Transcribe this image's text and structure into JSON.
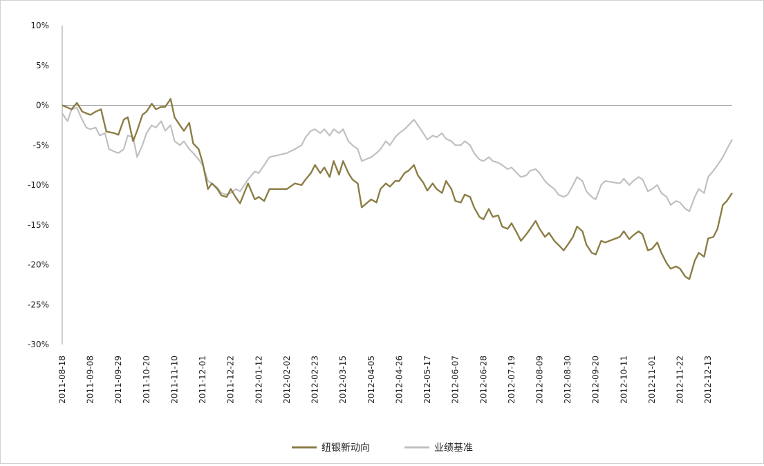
{
  "chart_data": {
    "type": "line",
    "title": "",
    "xlabel": "",
    "ylabel": "",
    "ylim": [
      -30,
      10
    ],
    "y_ticks": [
      "10%",
      "5%",
      "0%",
      "-5%",
      "-10%",
      "-15%",
      "-20%",
      "-25%",
      "-30%"
    ],
    "x_ticks": [
      "2011-08-18",
      "2011-09-08",
      "2011-09-29",
      "2011-10-20",
      "2011-11-10",
      "2011-12-01",
      "2011-12-22",
      "2012-01-12",
      "2012-02-02",
      "2012-02-23",
      "2012-03-15",
      "2012-04-05",
      "2012-04-26",
      "2012-05-17",
      "2012-06-07",
      "2012-06-28",
      "2012-07-19",
      "2012-08-09",
      "2012-08-30",
      "2012-09-20",
      "2012-10-11",
      "2012-11-01",
      "2012-11-22",
      "2012-12-13"
    ],
    "xlim": [
      "2011-08-18",
      "2012-12-31"
    ],
    "grid": false,
    "legend_position": "bottom",
    "series": [
      {
        "name": "纽银新动向",
        "color": "#8b7d45",
        "points": [
          [
            "2011-08-18",
            0.0
          ],
          [
            "2011-08-25",
            -0.5
          ],
          [
            "2011-08-29",
            0.3
          ],
          [
            "2011-09-02",
            -0.8
          ],
          [
            "2011-09-08",
            -1.2
          ],
          [
            "2011-09-12",
            -0.8
          ],
          [
            "2011-09-16",
            -0.5
          ],
          [
            "2011-09-20",
            -3.3
          ],
          [
            "2011-09-26",
            -3.5
          ],
          [
            "2011-09-29",
            -3.7
          ],
          [
            "2011-10-03",
            -1.8
          ],
          [
            "2011-10-06",
            -1.5
          ],
          [
            "2011-10-10",
            -4.5
          ],
          [
            "2011-10-13",
            -3.2
          ],
          [
            "2011-10-17",
            -1.2
          ],
          [
            "2011-10-20",
            -0.8
          ],
          [
            "2011-10-24",
            0.2
          ],
          [
            "2011-10-27",
            -0.5
          ],
          [
            "2011-10-31",
            -0.2
          ],
          [
            "2011-11-03",
            -0.2
          ],
          [
            "2011-11-07",
            0.8
          ],
          [
            "2011-11-10",
            -1.5
          ],
          [
            "2011-11-14",
            -2.5
          ],
          [
            "2011-11-17",
            -3.2
          ],
          [
            "2011-11-21",
            -2.2
          ],
          [
            "2011-11-24",
            -4.8
          ],
          [
            "2011-11-28",
            -5.5
          ],
          [
            "2011-12-01",
            -7.2
          ],
          [
            "2011-12-05",
            -10.5
          ],
          [
            "2011-12-08",
            -9.8
          ],
          [
            "2011-12-12",
            -10.5
          ],
          [
            "2011-12-15",
            -11.3
          ],
          [
            "2011-12-19",
            -11.5
          ],
          [
            "2011-12-22",
            -10.5
          ],
          [
            "2011-12-26",
            -11.6
          ],
          [
            "2011-12-29",
            -12.3
          ],
          [
            "2012-01-04",
            -9.8
          ],
          [
            "2012-01-09",
            -11.8
          ],
          [
            "2012-01-12",
            -11.5
          ],
          [
            "2012-01-16",
            -12.0
          ],
          [
            "2012-01-20",
            -10.5
          ],
          [
            "2012-02-02",
            -10.5
          ],
          [
            "2012-02-08",
            -9.8
          ],
          [
            "2012-02-13",
            -10.0
          ],
          [
            "2012-02-16",
            -9.3
          ],
          [
            "2012-02-20",
            -8.5
          ],
          [
            "2012-02-23",
            -7.5
          ],
          [
            "2012-02-27",
            -8.5
          ],
          [
            "2012-03-01",
            -7.8
          ],
          [
            "2012-03-05",
            -9.0
          ],
          [
            "2012-03-08",
            -7.0
          ],
          [
            "2012-03-12",
            -8.7
          ],
          [
            "2012-03-15",
            -7.0
          ],
          [
            "2012-03-19",
            -8.5
          ],
          [
            "2012-03-22",
            -9.3
          ],
          [
            "2012-03-26",
            -9.8
          ],
          [
            "2012-03-29",
            -12.8
          ],
          [
            "2012-04-05",
            -11.8
          ],
          [
            "2012-04-09",
            -12.2
          ],
          [
            "2012-04-12",
            -10.5
          ],
          [
            "2012-04-16",
            -9.8
          ],
          [
            "2012-04-19",
            -10.2
          ],
          [
            "2012-04-23",
            -9.5
          ],
          [
            "2012-04-26",
            -9.5
          ],
          [
            "2012-04-30",
            -8.5
          ],
          [
            "2012-05-03",
            -8.2
          ],
          [
            "2012-05-07",
            -7.5
          ],
          [
            "2012-05-10",
            -8.8
          ],
          [
            "2012-05-14",
            -9.7
          ],
          [
            "2012-05-17",
            -10.7
          ],
          [
            "2012-05-21",
            -9.8
          ],
          [
            "2012-05-24",
            -10.5
          ],
          [
            "2012-05-28",
            -11.0
          ],
          [
            "2012-05-31",
            -9.5
          ],
          [
            "2012-06-04",
            -10.5
          ],
          [
            "2012-06-07",
            -12.0
          ],
          [
            "2012-06-11",
            -12.2
          ],
          [
            "2012-06-14",
            -11.2
          ],
          [
            "2012-06-18",
            -11.5
          ],
          [
            "2012-06-21",
            -12.8
          ],
          [
            "2012-06-25",
            -14.0
          ],
          [
            "2012-06-28",
            -14.3
          ],
          [
            "2012-07-02",
            -13.0
          ],
          [
            "2012-07-05",
            -14.0
          ],
          [
            "2012-07-09",
            -13.8
          ],
          [
            "2012-07-12",
            -15.2
          ],
          [
            "2012-07-16",
            -15.5
          ],
          [
            "2012-07-19",
            -14.8
          ],
          [
            "2012-07-23",
            -16.0
          ],
          [
            "2012-07-26",
            -17.0
          ],
          [
            "2012-07-30",
            -16.2
          ],
          [
            "2012-08-02",
            -15.5
          ],
          [
            "2012-08-06",
            -14.5
          ],
          [
            "2012-08-09",
            -15.5
          ],
          [
            "2012-08-13",
            -16.5
          ],
          [
            "2012-08-16",
            -16.0
          ],
          [
            "2012-08-20",
            -17.0
          ],
          [
            "2012-08-23",
            -17.5
          ],
          [
            "2012-08-27",
            -18.2
          ],
          [
            "2012-08-30",
            -17.5
          ],
          [
            "2012-09-03",
            -16.5
          ],
          [
            "2012-09-06",
            -15.2
          ],
          [
            "2012-09-10",
            -15.8
          ],
          [
            "2012-09-13",
            -17.5
          ],
          [
            "2012-09-17",
            -18.5
          ],
          [
            "2012-09-20",
            -18.7
          ],
          [
            "2012-09-24",
            -17.0
          ],
          [
            "2012-09-27",
            -17.2
          ],
          [
            "2012-10-08",
            -16.5
          ],
          [
            "2012-10-11",
            -15.8
          ],
          [
            "2012-10-15",
            -16.8
          ],
          [
            "2012-10-18",
            -16.3
          ],
          [
            "2012-10-22",
            -15.8
          ],
          [
            "2012-10-25",
            -16.2
          ],
          [
            "2012-10-29",
            -18.2
          ],
          [
            "2012-11-01",
            -18.0
          ],
          [
            "2012-11-05",
            -17.2
          ],
          [
            "2012-11-08",
            -18.5
          ],
          [
            "2012-11-12",
            -19.8
          ],
          [
            "2012-11-15",
            -20.5
          ],
          [
            "2012-11-19",
            -20.2
          ],
          [
            "2012-11-22",
            -20.5
          ],
          [
            "2012-11-26",
            -21.5
          ],
          [
            "2012-11-29",
            -21.8
          ],
          [
            "2012-12-03",
            -19.5
          ],
          [
            "2012-12-06",
            -18.5
          ],
          [
            "2012-12-10",
            -19.0
          ],
          [
            "2012-12-13",
            -16.7
          ],
          [
            "2012-12-17",
            -16.5
          ],
          [
            "2012-12-20",
            -15.5
          ],
          [
            "2012-12-24",
            -12.5
          ],
          [
            "2012-12-27",
            -12.0
          ],
          [
            "2012-12-31",
            -11.0
          ]
        ]
      },
      {
        "name": "业绩基准",
        "color": "#c0c0c0",
        "points": [
          [
            "2011-08-18",
            -1.0
          ],
          [
            "2011-08-22",
            -2.0
          ],
          [
            "2011-08-25",
            -0.5
          ],
          [
            "2011-08-29",
            -0.3
          ],
          [
            "2011-09-01",
            -1.5
          ],
          [
            "2011-09-05",
            -2.8
          ],
          [
            "2011-09-08",
            -3.0
          ],
          [
            "2011-09-12",
            -2.8
          ],
          [
            "2011-09-15",
            -3.8
          ],
          [
            "2011-09-19",
            -3.5
          ],
          [
            "2011-09-22",
            -5.5
          ],
          [
            "2011-09-26",
            -5.8
          ],
          [
            "2011-09-29",
            -6.0
          ],
          [
            "2011-10-03",
            -5.5
          ],
          [
            "2011-10-06",
            -3.8
          ],
          [
            "2011-10-10",
            -4.0
          ],
          [
            "2011-10-13",
            -6.5
          ],
          [
            "2011-10-17",
            -5.0
          ],
          [
            "2011-10-20",
            -3.5
          ],
          [
            "2011-10-24",
            -2.5
          ],
          [
            "2011-10-27",
            -2.8
          ],
          [
            "2011-10-31",
            -2.0
          ],
          [
            "2011-11-03",
            -3.2
          ],
          [
            "2011-11-07",
            -2.5
          ],
          [
            "2011-11-10",
            -4.5
          ],
          [
            "2011-11-14",
            -5.0
          ],
          [
            "2011-11-17",
            -4.5
          ],
          [
            "2011-11-21",
            -5.5
          ],
          [
            "2011-11-24",
            -6.0
          ],
          [
            "2011-11-28",
            -6.8
          ],
          [
            "2011-12-01",
            -7.5
          ],
          [
            "2011-12-05",
            -9.5
          ],
          [
            "2011-12-08",
            -9.8
          ],
          [
            "2011-12-12",
            -10.3
          ],
          [
            "2011-12-15",
            -11.0
          ],
          [
            "2011-12-19",
            -11.2
          ],
          [
            "2011-12-22",
            -11.0
          ],
          [
            "2011-12-26",
            -10.5
          ],
          [
            "2011-12-29",
            -10.8
          ],
          [
            "2012-01-04",
            -9.3
          ],
          [
            "2012-01-09",
            -8.3
          ],
          [
            "2012-01-12",
            -8.5
          ],
          [
            "2012-01-16",
            -7.5
          ],
          [
            "2012-01-20",
            -6.5
          ],
          [
            "2012-02-02",
            -6.0
          ],
          [
            "2012-02-08",
            -5.5
          ],
          [
            "2012-02-13",
            -5.0
          ],
          [
            "2012-02-16",
            -4.0
          ],
          [
            "2012-02-20",
            -3.2
          ],
          [
            "2012-02-23",
            -3.0
          ],
          [
            "2012-02-27",
            -3.5
          ],
          [
            "2012-03-01",
            -3.0
          ],
          [
            "2012-03-05",
            -3.8
          ],
          [
            "2012-03-08",
            -3.0
          ],
          [
            "2012-03-12",
            -3.5
          ],
          [
            "2012-03-15",
            -3.0
          ],
          [
            "2012-03-19",
            -4.5
          ],
          [
            "2012-03-22",
            -5.0
          ],
          [
            "2012-03-26",
            -5.5
          ],
          [
            "2012-03-29",
            -7.0
          ],
          [
            "2012-04-05",
            -6.5
          ],
          [
            "2012-04-09",
            -6.0
          ],
          [
            "2012-04-12",
            -5.5
          ],
          [
            "2012-04-16",
            -4.5
          ],
          [
            "2012-04-19",
            -5.0
          ],
          [
            "2012-04-23",
            -4.0
          ],
          [
            "2012-04-26",
            -3.5
          ],
          [
            "2012-04-30",
            -3.0
          ],
          [
            "2012-05-03",
            -2.5
          ],
          [
            "2012-05-07",
            -1.8
          ],
          [
            "2012-05-10",
            -2.5
          ],
          [
            "2012-05-14",
            -3.5
          ],
          [
            "2012-05-17",
            -4.3
          ],
          [
            "2012-05-21",
            -3.8
          ],
          [
            "2012-05-24",
            -4.0
          ],
          [
            "2012-05-28",
            -3.5
          ],
          [
            "2012-05-31",
            -4.2
          ],
          [
            "2012-06-04",
            -4.5
          ],
          [
            "2012-06-07",
            -5.0
          ],
          [
            "2012-06-11",
            -5.0
          ],
          [
            "2012-06-14",
            -4.5
          ],
          [
            "2012-06-18",
            -5.0
          ],
          [
            "2012-06-21",
            -6.0
          ],
          [
            "2012-06-25",
            -6.8
          ],
          [
            "2012-06-28",
            -7.0
          ],
          [
            "2012-07-02",
            -6.5
          ],
          [
            "2012-07-05",
            -7.0
          ],
          [
            "2012-07-09",
            -7.2
          ],
          [
            "2012-07-12",
            -7.5
          ],
          [
            "2012-07-16",
            -8.0
          ],
          [
            "2012-07-19",
            -7.8
          ],
          [
            "2012-07-23",
            -8.5
          ],
          [
            "2012-07-26",
            -9.0
          ],
          [
            "2012-07-30",
            -8.8
          ],
          [
            "2012-08-02",
            -8.2
          ],
          [
            "2012-08-06",
            -8.0
          ],
          [
            "2012-08-09",
            -8.5
          ],
          [
            "2012-08-13",
            -9.5
          ],
          [
            "2012-08-16",
            -10.0
          ],
          [
            "2012-08-20",
            -10.5
          ],
          [
            "2012-08-23",
            -11.2
          ],
          [
            "2012-08-27",
            -11.5
          ],
          [
            "2012-08-30",
            -11.2
          ],
          [
            "2012-09-03",
            -10.0
          ],
          [
            "2012-09-06",
            -9.0
          ],
          [
            "2012-09-10",
            -9.5
          ],
          [
            "2012-09-13",
            -10.8
          ],
          [
            "2012-09-17",
            -11.5
          ],
          [
            "2012-09-20",
            -11.8
          ],
          [
            "2012-09-24",
            -10.0
          ],
          [
            "2012-09-27",
            -9.5
          ],
          [
            "2012-10-08",
            -9.8
          ],
          [
            "2012-10-11",
            -9.2
          ],
          [
            "2012-10-15",
            -10.0
          ],
          [
            "2012-10-18",
            -9.5
          ],
          [
            "2012-10-22",
            -9.0
          ],
          [
            "2012-10-25",
            -9.3
          ],
          [
            "2012-10-29",
            -10.8
          ],
          [
            "2012-11-01",
            -10.5
          ],
          [
            "2012-11-05",
            -10.0
          ],
          [
            "2012-11-08",
            -11.0
          ],
          [
            "2012-11-12",
            -11.5
          ],
          [
            "2012-11-15",
            -12.5
          ],
          [
            "2012-11-19",
            -12.0
          ],
          [
            "2012-11-22",
            -12.2
          ],
          [
            "2012-11-26",
            -13.0
          ],
          [
            "2012-11-29",
            -13.3
          ],
          [
            "2012-12-03",
            -11.5
          ],
          [
            "2012-12-06",
            -10.5
          ],
          [
            "2012-12-10",
            -11.0
          ],
          [
            "2012-12-13",
            -9.0
          ],
          [
            "2012-12-17",
            -8.2
          ],
          [
            "2012-12-20",
            -7.5
          ],
          [
            "2012-12-24",
            -6.5
          ],
          [
            "2012-12-27",
            -5.5
          ],
          [
            "2012-12-31",
            -4.3
          ]
        ]
      }
    ]
  }
}
